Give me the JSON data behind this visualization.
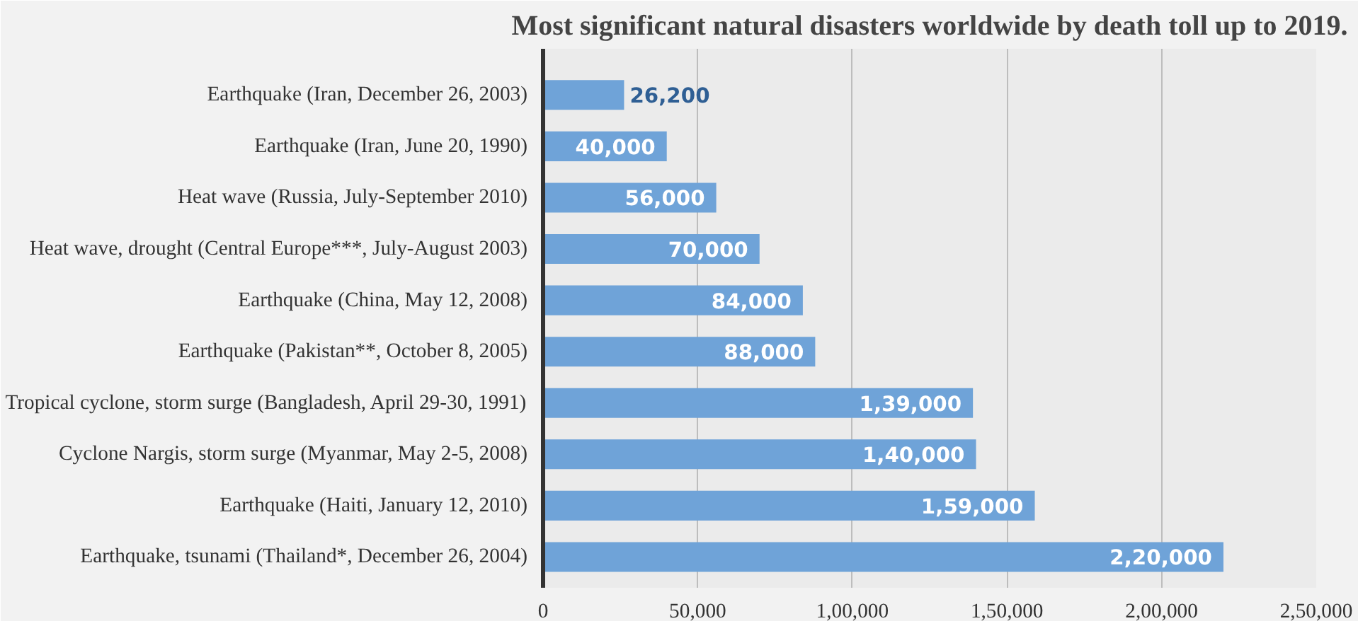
{
  "chart_data": {
    "type": "bar",
    "orientation": "horizontal",
    "title": "Most significant natural disasters worldwide by death toll up to 2019.",
    "categories": [
      "Earthquake (Iran, December 26, 2003)",
      "Earthquake (Iran, June 20, 1990)",
      "Heat wave (Russia, July-September 2010)",
      "Heat wave, drought (Central Europe***, July-August 2003)",
      "Earthquake (China, May 12, 2008)",
      "Earthquake (Pakistan**, October 8, 2005)",
      "Tropical cyclone, storm surge (Bangladesh, April 29-30, 1991)",
      "Cyclone Nargis, storm surge (Myanmar, May 2-5, 2008)",
      "Earthquake (Haiti, January 12, 2010)",
      "Earthquake, tsunami (Thailand*, December 26, 2004)"
    ],
    "values": [
      26200,
      40000,
      56000,
      70000,
      84000,
      88000,
      139000,
      140000,
      159000,
      220000
    ],
    "value_labels": [
      "26,200",
      "40,000",
      "56,000",
      "70,000",
      "84,000",
      "88,000",
      "1,39,000",
      "1,40,000",
      "1,59,000",
      "2,20,000"
    ],
    "color": "#6fa3d8",
    "xlim": [
      0,
      250000
    ],
    "xticks": [
      0,
      {
        "value": 50000,
        "label": "50,000"
      },
      {
        "value": 100000,
        "label": "1,00,000"
      },
      {
        "value": 150000,
        "label": "1,50,000"
      },
      {
        "value": 200000,
        "label": "2,00,000"
      },
      {
        "value": 250000,
        "label": "2,50,000"
      }
    ],
    "grid": "x"
  }
}
